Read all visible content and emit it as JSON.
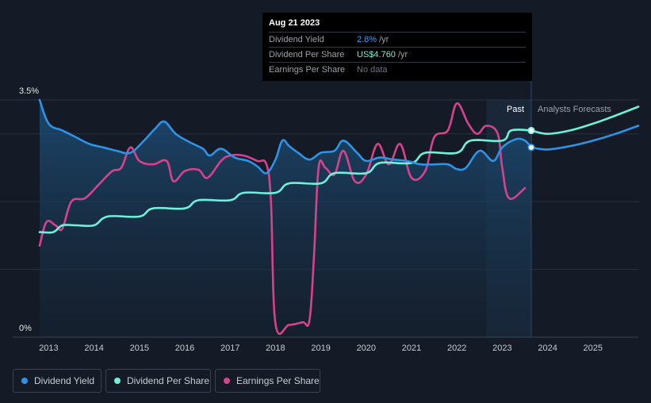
{
  "tooltip": {
    "date": "Aug 21 2023",
    "rows": [
      {
        "label": "Dividend Yield",
        "value": "2.8%",
        "unit": "/yr"
      },
      {
        "label": "Dividend Per Share",
        "value": "US$4.760",
        "unit": "/yr"
      },
      {
        "label": "Earnings Per Share",
        "value": "No data",
        "unit": ""
      }
    ]
  },
  "legend": [
    {
      "label": "Dividend Yield",
      "color": "#2e93e6"
    },
    {
      "label": "Dividend Per Share",
      "color": "#6ff0d8"
    },
    {
      "label": "Earnings Per Share",
      "color": "#d6438d"
    }
  ],
  "regions": {
    "past": "Past",
    "forecast": "Analysts Forecasts"
  },
  "chart_data": {
    "type": "line",
    "yaxis": {
      "top_label": "3.5%",
      "bottom_label": "0%",
      "ylim": [
        0,
        3.5
      ]
    },
    "x_ticks": [
      "2013",
      "2014",
      "2015",
      "2016",
      "2017",
      "2018",
      "2019",
      "2020",
      "2021",
      "2022",
      "2023",
      "2024",
      "2025"
    ],
    "xlim": [
      2012.8,
      2026.0
    ],
    "past_end": 2023.64,
    "forecast_band_start": 2022.65,
    "series": [
      {
        "name": "Dividend Yield",
        "color": "#2e93e6",
        "x": [
          2012.8,
          2013.0,
          2013.3,
          2013.6,
          2013.9,
          2014.2,
          2014.5,
          2014.8,
          2015.1,
          2015.35,
          2015.55,
          2015.8,
          2016.1,
          2016.4,
          2016.55,
          2016.8,
          2017.1,
          2017.4,
          2017.6,
          2017.8,
          2018.0,
          2018.15,
          2018.3,
          2018.5,
          2018.75,
          2019.0,
          2019.3,
          2019.5,
          2019.8,
          2020.0,
          2020.3,
          2020.6,
          2020.9,
          2021.2,
          2021.5,
          2021.8,
          2022.0,
          2022.2,
          2022.5,
          2022.8,
          2023.0,
          2023.3,
          2023.5,
          2023.64
        ],
        "y": [
          3.5,
          3.15,
          3.05,
          2.95,
          2.85,
          2.8,
          2.75,
          2.72,
          2.9,
          3.08,
          3.18,
          3.0,
          2.88,
          2.78,
          2.68,
          2.78,
          2.65,
          2.6,
          2.52,
          2.42,
          2.62,
          2.9,
          2.82,
          2.72,
          2.62,
          2.72,
          2.75,
          2.9,
          2.72,
          2.6,
          2.65,
          2.62,
          2.6,
          2.55,
          2.55,
          2.55,
          2.48,
          2.5,
          2.75,
          2.6,
          2.8,
          2.92,
          2.9,
          2.8
        ]
      },
      {
        "name": "Dividend Per Share",
        "color": "#6ff0d8",
        "x": [
          2012.8,
          2013.1,
          2013.3,
          2013.6,
          2014.0,
          2014.3,
          2015.0,
          2015.3,
          2016.0,
          2016.3,
          2017.0,
          2017.3,
          2018.0,
          2018.3,
          2019.0,
          2019.3,
          2020.0,
          2020.3,
          2021.0,
          2021.3,
          2022.0,
          2022.3,
          2023.0,
          2023.2,
          2023.64
        ],
        "y": [
          1.55,
          1.55,
          1.65,
          1.65,
          1.65,
          1.78,
          1.78,
          1.9,
          1.9,
          2.02,
          2.02,
          2.13,
          2.13,
          2.27,
          2.27,
          2.42,
          2.42,
          2.57,
          2.57,
          2.72,
          2.72,
          2.9,
          2.9,
          3.05,
          3.05
        ]
      },
      {
        "name": "Earnings Per Share",
        "color": "#d6438d",
        "x": [
          2012.8,
          2012.95,
          2013.15,
          2013.3,
          2013.5,
          2013.8,
          2014.1,
          2014.4,
          2014.6,
          2014.8,
          2015.0,
          2015.3,
          2015.6,
          2015.75,
          2016.0,
          2016.3,
          2016.5,
          2016.8,
          2017.0,
          2017.3,
          2017.6,
          2017.8,
          2017.9,
          2018.0,
          2018.3,
          2018.6,
          2018.75,
          2018.85,
          2018.95,
          2019.1,
          2019.3,
          2019.5,
          2019.75,
          2020.0,
          2020.25,
          2020.5,
          2020.75,
          2021.0,
          2021.3,
          2021.5,
          2021.8,
          2022.0,
          2022.25,
          2022.45,
          2022.65,
          2022.9,
          2023.0,
          2023.15,
          2023.5
        ],
        "y": [
          1.35,
          1.7,
          1.65,
          1.6,
          2.0,
          2.05,
          2.25,
          2.45,
          2.5,
          2.8,
          2.6,
          2.55,
          2.6,
          2.3,
          2.45,
          2.47,
          2.35,
          2.6,
          2.68,
          2.68,
          2.6,
          2.55,
          2.0,
          0.2,
          0.18,
          0.22,
          0.25,
          1.2,
          2.5,
          2.5,
          2.4,
          2.75,
          2.3,
          2.4,
          2.85,
          2.55,
          2.85,
          2.35,
          2.45,
          2.95,
          3.05,
          3.45,
          3.15,
          3.0,
          3.12,
          3.0,
          2.5,
          2.05,
          2.2
        ]
      },
      {
        "name": "Dividend Yield Forecast",
        "color": "#2e93e6",
        "x": [
          2023.64,
          2024.0,
          2024.5,
          2025.0,
          2025.5,
          2026.0
        ],
        "y": [
          2.8,
          2.77,
          2.82,
          2.9,
          3.0,
          3.12
        ]
      },
      {
        "name": "Dividend Per Share Forecast",
        "color": "#6ff0d8",
        "x": [
          2023.64,
          2024.0,
          2024.5,
          2025.0,
          2025.5,
          2026.0
        ],
        "y": [
          3.05,
          3.0,
          3.05,
          3.15,
          3.27,
          3.4
        ]
      }
    ]
  }
}
